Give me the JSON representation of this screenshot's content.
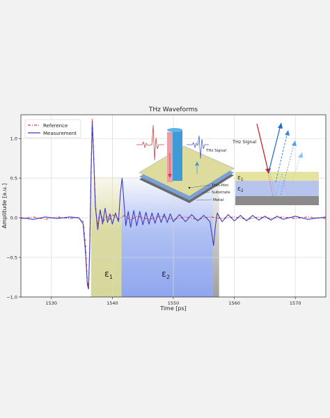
{
  "chart_data": {
    "type": "line",
    "title": "THz Waveforms",
    "xlabel": "Time [ps]",
    "ylabel": "Amplitude [a.u.]",
    "xlim": [
      1525,
      1575
    ],
    "ylim": [
      -1.0,
      1.3
    ],
    "xticks": [
      1530,
      1540,
      1550,
      1560,
      1570
    ],
    "xtick_labels": [
      "1530",
      "1540",
      "1550",
      "1560",
      "1570"
    ],
    "yticks": [
      -1.0,
      -0.5,
      0.0,
      0.5,
      1.0
    ],
    "ytick_labels": [
      "−1.0",
      "−0.5",
      "0.0",
      "0.5",
      "1.0"
    ],
    "grid": true,
    "legend_position": "top-left",
    "series": [
      {
        "name": "Reference",
        "color": "#e03030",
        "style": "dash-dot",
        "points": [
          [
            1525,
            -0.01
          ],
          [
            1527,
            0.01
          ],
          [
            1529,
            -0.02
          ],
          [
            1531,
            0.01
          ],
          [
            1533,
            -0.01
          ],
          [
            1534.5,
            0.0
          ],
          [
            1535.2,
            -0.05
          ],
          [
            1535.6,
            -0.35
          ],
          [
            1535.9,
            -0.8
          ],
          [
            1536.1,
            -0.88
          ],
          [
            1536.3,
            -0.3
          ],
          [
            1536.5,
            0.6
          ],
          [
            1536.7,
            1.25
          ],
          [
            1536.9,
            0.9
          ],
          [
            1537.2,
            0.2
          ],
          [
            1537.5,
            -0.1
          ],
          [
            1538,
            0.08
          ],
          [
            1538.5,
            -0.05
          ],
          [
            1539,
            0.03
          ],
          [
            1539.5,
            -0.03
          ],
          [
            1540,
            0.04
          ],
          [
            1541,
            -0.02
          ],
          [
            1542,
            0.03
          ],
          [
            1543,
            -0.03
          ],
          [
            1544,
            0.02
          ],
          [
            1546,
            -0.02
          ],
          [
            1548,
            0.02
          ],
          [
            1550,
            -0.02
          ],
          [
            1552,
            0.01
          ],
          [
            1554,
            -0.02
          ],
          [
            1556,
            0.01
          ],
          [
            1558,
            -0.01
          ],
          [
            1560,
            0.01
          ],
          [
            1562,
            -0.02
          ],
          [
            1564,
            0.01
          ],
          [
            1566,
            -0.01
          ],
          [
            1568,
            0.01
          ],
          [
            1570,
            -0.01
          ],
          [
            1572,
            0.01
          ],
          [
            1575,
            -0.01
          ]
        ]
      },
      {
        "name": "Measurement",
        "color": "#3a3acc",
        "style": "solid",
        "points": [
          [
            1525,
            0.0
          ],
          [
            1527,
            -0.02
          ],
          [
            1529,
            0.01
          ],
          [
            1531,
            -0.01
          ],
          [
            1533,
            0.01
          ],
          [
            1534.5,
            0.0
          ],
          [
            1535.2,
            -0.08
          ],
          [
            1535.6,
            -0.45
          ],
          [
            1535.9,
            -0.85
          ],
          [
            1536.1,
            -0.9
          ],
          [
            1536.3,
            -0.35
          ],
          [
            1536.5,
            0.5
          ],
          [
            1536.7,
            1.2
          ],
          [
            1536.9,
            0.85
          ],
          [
            1537.2,
            0.15
          ],
          [
            1537.6,
            -0.15
          ],
          [
            1538,
            0.1
          ],
          [
            1538.4,
            -0.08
          ],
          [
            1538.8,
            0.12
          ],
          [
            1539.2,
            -0.06
          ],
          [
            1539.6,
            0.05
          ],
          [
            1540,
            -0.08
          ],
          [
            1540.5,
            0.06
          ],
          [
            1541,
            -0.05
          ],
          [
            1541.3,
            0.3
          ],
          [
            1541.6,
            0.5
          ],
          [
            1541.9,
            0.2
          ],
          [
            1542.2,
            -0.1
          ],
          [
            1542.6,
            0.08
          ],
          [
            1543,
            -0.12
          ],
          [
            1543.5,
            0.09
          ],
          [
            1544,
            -0.1
          ],
          [
            1544.5,
            0.08
          ],
          [
            1545,
            -0.09
          ],
          [
            1545.5,
            0.07
          ],
          [
            1546,
            -0.08
          ],
          [
            1546.5,
            0.06
          ],
          [
            1547,
            -0.07
          ],
          [
            1547.5,
            0.06
          ],
          [
            1548,
            -0.06
          ],
          [
            1548.5,
            0.05
          ],
          [
            1549,
            -0.06
          ],
          [
            1549.5,
            0.05
          ],
          [
            1550,
            -0.05
          ],
          [
            1551,
            0.04
          ],
          [
            1552,
            -0.05
          ],
          [
            1553,
            0.04
          ],
          [
            1554,
            -0.04
          ],
          [
            1555,
            0.03
          ],
          [
            1556,
            -0.05
          ],
          [
            1556.3,
            -0.2
          ],
          [
            1556.6,
            -0.35
          ],
          [
            1556.9,
            -0.1
          ],
          [
            1557.2,
            0.06
          ],
          [
            1558,
            -0.05
          ],
          [
            1559,
            0.04
          ],
          [
            1560,
            -0.04
          ],
          [
            1561,
            0.03
          ],
          [
            1562,
            -0.04
          ],
          [
            1563,
            0.03
          ],
          [
            1564,
            -0.03
          ],
          [
            1565,
            0.02
          ],
          [
            1566,
            -0.03
          ],
          [
            1567,
            0.02
          ],
          [
            1568,
            -0.02
          ],
          [
            1570,
            0.02
          ],
          [
            1572,
            -0.02
          ],
          [
            1575,
            0.01
          ]
        ]
      }
    ],
    "regions": [
      {
        "label": "ε",
        "sub": "1",
        "x0": 1536.5,
        "x1": 1541.5,
        "color": "#d6d79a"
      },
      {
        "label": "ε",
        "sub": "2",
        "x0": 1541.5,
        "x1": 1556.5,
        "color": "#8ea6ee"
      },
      {
        "label": "",
        "sub": "",
        "x0": 1556.5,
        "x1": 1557.5,
        "color": "#a0a0a0"
      }
    ]
  },
  "inset_left": {
    "labels": [
      "THz Signal",
      "Thin-film",
      "Substrate",
      "Metal"
    ]
  },
  "inset_right": {
    "signal_label": "THz Signal",
    "layers": [
      {
        "symbol": "ε",
        "sub": "1",
        "color": "#e6e3a0"
      },
      {
        "symbol": "ε",
        "sub": "2",
        "color": "#b7c4ee"
      },
      {
        "symbol": "",
        "sub": "",
        "color": "#8a8a8a"
      }
    ]
  }
}
